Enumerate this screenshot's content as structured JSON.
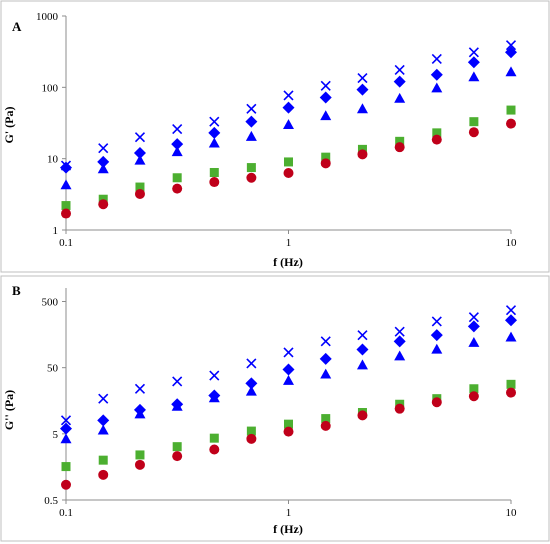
{
  "chart_data": [
    {
      "panel": "A",
      "type": "scatter",
      "xscale": "log",
      "yscale": "log",
      "xlim": [
        0.1,
        10
      ],
      "ylim": [
        1,
        1000
      ],
      "xticks": [
        "0.1",
        "1",
        "10"
      ],
      "yticks": [
        "1",
        "10",
        "100",
        "1000"
      ],
      "xlabel": "f (Hz)",
      "ylabel": "G' (Pa)",
      "grid": false,
      "x": [
        0.1,
        0.147,
        0.215,
        0.316,
        0.464,
        0.681,
        1,
        1.47,
        2.15,
        3.16,
        4.64,
        6.81,
        10
      ],
      "series": [
        {
          "marker": "x",
          "color": "#0000ff",
          "values": [
            8,
            14,
            20,
            26,
            33,
            50,
            77,
            105,
            135,
            175,
            250,
            310,
            390
          ]
        },
        {
          "marker": "diamond",
          "color": "#0000ff",
          "values": [
            7.5,
            9,
            12,
            16,
            23,
            33,
            52,
            72,
            93,
            120,
            150,
            225,
            310
          ]
        },
        {
          "marker": "triangle",
          "color": "#0000ff",
          "values": [
            4.3,
            7.2,
            9.5,
            12.5,
            16.5,
            20.5,
            30,
            40,
            50,
            70,
            98,
            140,
            165
          ]
        },
        {
          "marker": "square",
          "color": "#4caf30",
          "values": [
            2.2,
            2.7,
            4,
            5.4,
            6.4,
            7.5,
            9,
            10.5,
            13.5,
            17.5,
            23,
            33,
            48
          ]
        },
        {
          "marker": "circle",
          "color": "#c0001a",
          "values": [
            1.7,
            2.3,
            3.2,
            3.8,
            4.7,
            5.4,
            6.3,
            8.6,
            11.5,
            14.5,
            18.5,
            23.5,
            31
          ]
        }
      ]
    },
    {
      "panel": "B",
      "type": "scatter",
      "xscale": "log",
      "yscale": "log",
      "xlim": [
        0.1,
        10
      ],
      "ylim": [
        0.5,
        800
      ],
      "xticks": [
        "0.1",
        "1",
        "10"
      ],
      "yticks": [
        "0.5",
        "5",
        "50",
        "500"
      ],
      "xlabel": "f (Hz)",
      "ylabel": "G'' (Pa)",
      "grid": false,
      "x": [
        0.1,
        0.147,
        0.215,
        0.316,
        0.464,
        0.681,
        1,
        1.47,
        2.15,
        3.16,
        4.64,
        6.81,
        10
      ],
      "series": [
        {
          "marker": "x",
          "color": "#0000ff",
          "values": [
            8,
            17,
            24,
            31,
            38,
            58,
            85,
            125,
            155,
            175,
            250,
            290,
            370
          ]
        },
        {
          "marker": "diamond",
          "color": "#0000ff",
          "values": [
            6,
            8,
            11.5,
            14,
            19,
            29,
            47,
            68,
            94,
            125,
            155,
            210,
            260
          ]
        },
        {
          "marker": "triangle",
          "color": "#0000ff",
          "values": [
            4.2,
            5.7,
            10,
            13,
            17.5,
            22,
            32,
            40,
            55,
            75,
            95,
            120,
            145
          ]
        },
        {
          "marker": "square",
          "color": "#4caf30",
          "values": [
            1.6,
            2,
            2.4,
            3.2,
            4.3,
            5.5,
            7,
            8.5,
            10.5,
            14,
            17,
            24,
            28
          ]
        },
        {
          "marker": "circle",
          "color": "#c0001a",
          "values": [
            0.85,
            1.2,
            1.7,
            2.3,
            2.9,
            4.2,
            5.4,
            6.6,
            9.5,
            12,
            15,
            18.5,
            21
          ]
        }
      ]
    }
  ]
}
